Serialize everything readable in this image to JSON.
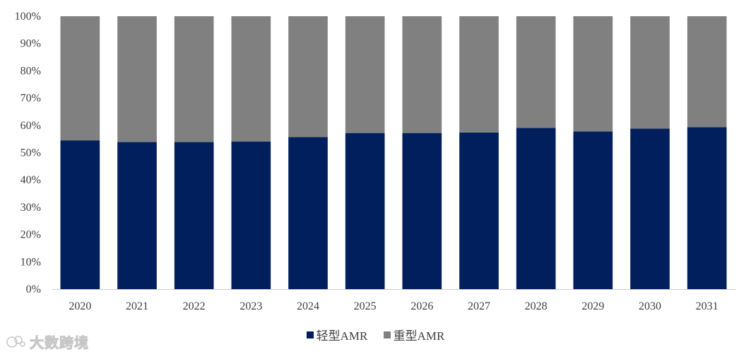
{
  "chart_data": {
    "type": "bar",
    "stacked": "percent",
    "categories": [
      "2020",
      "2021",
      "2022",
      "2023",
      "2024",
      "2025",
      "2026",
      "2027",
      "2028",
      "2029",
      "2030",
      "2031"
    ],
    "series": [
      {
        "name": "轻型AMR",
        "color": "#001f5c",
        "values": [
          54.5,
          53.9,
          53.9,
          54.1,
          55.7,
          57.2,
          57.2,
          57.4,
          59.1,
          57.8,
          58.8,
          59.3
        ]
      },
      {
        "name": "重型AMR",
        "color": "#808080",
        "values": [
          45.5,
          46.1,
          46.1,
          45.9,
          44.3,
          42.8,
          42.8,
          42.6,
          40.9,
          42.2,
          41.2,
          40.7
        ]
      }
    ],
    "ylim": [
      0,
      100
    ],
    "yticks": [
      "0%",
      "10%",
      "20%",
      "30%",
      "40%",
      "50%",
      "60%",
      "70%",
      "80%",
      "90%",
      "100%"
    ],
    "legend_position": "bottom-center",
    "grid": false
  },
  "watermark": {
    "text": "大数跨境"
  }
}
